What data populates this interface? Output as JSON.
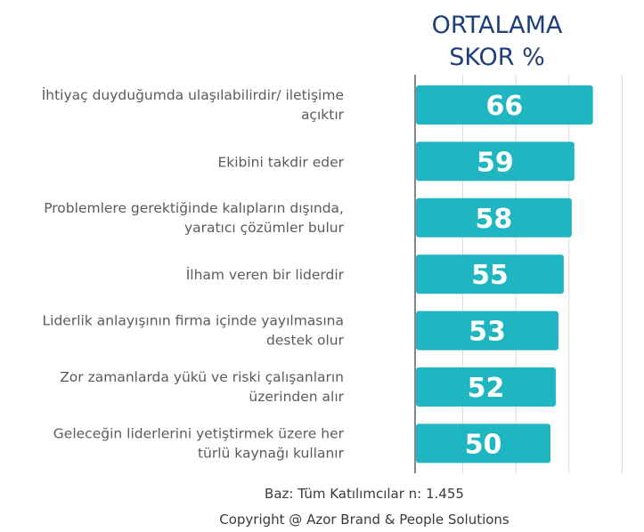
{
  "chart_data": {
    "type": "bar",
    "orientation": "horizontal",
    "title_lines": [
      "ORTALAMA",
      "SKOR %"
    ],
    "categories": [
      [
        "İhtiyaç duyduğumda ulaşılabilirdir/ iletişime",
        "açıktır"
      ],
      [
        "Ekibini takdir eder"
      ],
      [
        "Problemlere gerektiğinde kalıpların dışında,",
        "yaratıcı çözümler bulur"
      ],
      [
        "İlham veren bir liderdir"
      ],
      [
        "Liderlik anlayışının firma içinde yayılmasına",
        "destek olur"
      ],
      [
        "Zor zamanlarda yükü ve riski çalışanların",
        "üzerinden alır"
      ],
      [
        "Geleceğin liderlerini yetiştirmek üzere her",
        "türlü kaynağı kullanır"
      ]
    ],
    "values": [
      66,
      59,
      58,
      55,
      53,
      52,
      50
    ],
    "xlim": [
      0,
      80
    ],
    "grid": true,
    "colors": {
      "bar": "#1fb6c1",
      "title": "#1f3f7a",
      "label": "#5b5b5b",
      "value": "#ffffff"
    }
  },
  "footer": {
    "base_note": "Baz: Tüm Katılımcılar n: 1.455",
    "copyright": "Copyright @ Azor Brand & People Solutions"
  }
}
